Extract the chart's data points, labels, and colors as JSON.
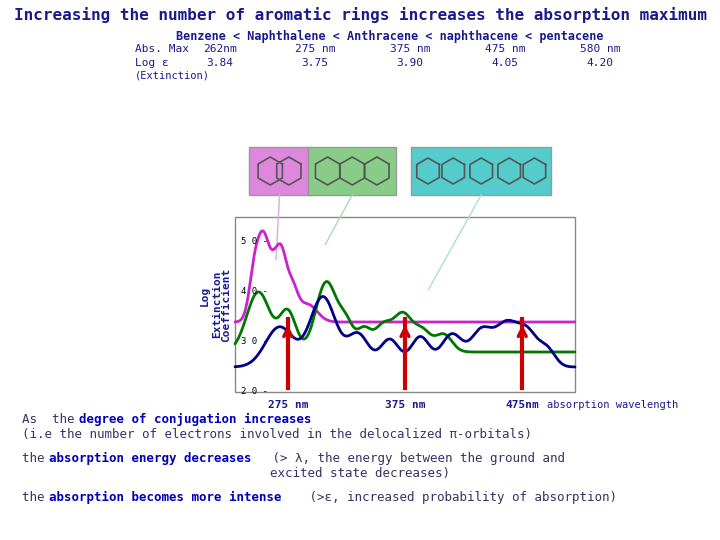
{
  "title": "Increasing the number of aromatic rings increases the absorption maximum",
  "title_color": "#1a1a8c",
  "title_fontsize": 11.5,
  "bg_color": "#ffffff",
  "header_line": "Benzene < Naphthalene < Anthracene < naphthacene < pentacene",
  "header_color": "#1a1a8c",
  "abs_max_label": "Abs. Max",
  "log_label": "Log ε",
  "extinction_label": "(Extinction)",
  "abs_max": [
    "262nm",
    "275 nm",
    "375 nm",
    "475 nm",
    "580 nm"
  ],
  "log_eps": [
    "3.84",
    "3.75",
    "3.90",
    "4.05",
    "4.20"
  ],
  "label_color": "#1a1a8c",
  "ylabel1": "Log",
  "ylabel2": "Extinction",
  "ylabel3": "Coefficient",
  "ylabel_color": "#1a1a8c",
  "xlabel_color": "#1a1a8c",
  "xlabels": [
    "275 nm",
    "375 nm",
    "475nm"
  ],
  "xlabel_wls": [
    275,
    375,
    475
  ],
  "yval_labels": [
    "2 0 -",
    "3 0 -",
    "4 0 -",
    "5 0 -"
  ],
  "yvals": [
    2.0,
    3.0,
    4.0,
    5.0
  ],
  "ymin": 2.0,
  "ymax": 5.5,
  "wl_min": 230,
  "wl_max": 520,
  "red_arrow_wls": [
    275,
    375,
    475
  ],
  "plot_bg": "#ffffff",
  "naphthalene_box_color": "#dd88dd",
  "anthracene_box_color": "#88cc88",
  "pentacene_box_color": "#55cccc",
  "text_color_normal": "#333366",
  "text_color_bold": "#0000bb",
  "text_fontsize": 9
}
